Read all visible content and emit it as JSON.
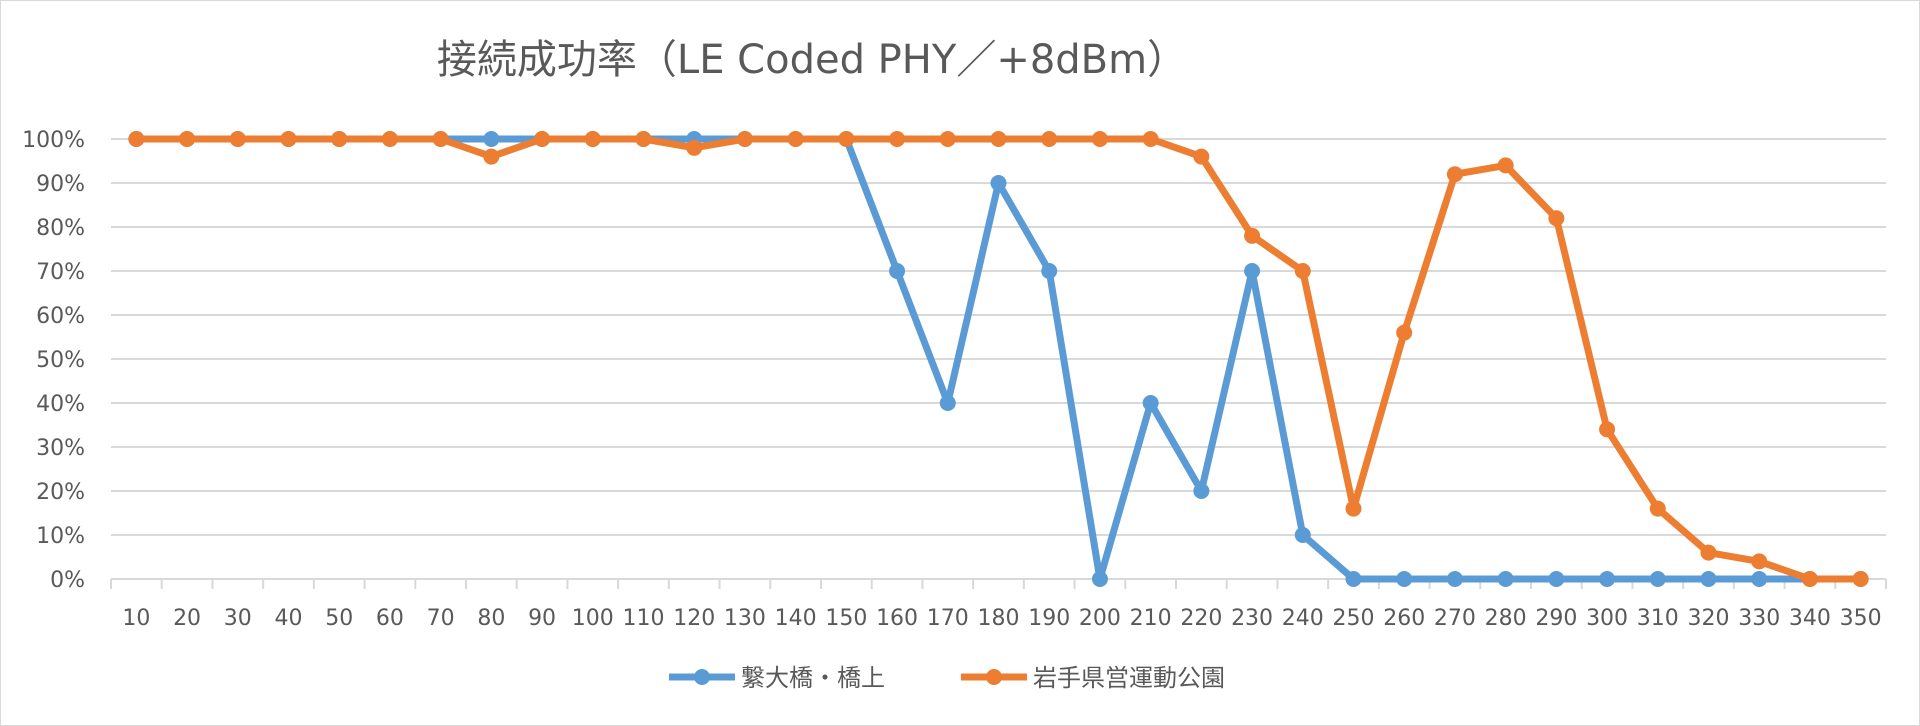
{
  "chart_data": {
    "type": "line",
    "title": "接続成功率（LE Coded PHY／+8dBm）",
    "xlabel": "",
    "ylabel": "",
    "x": [
      10,
      20,
      30,
      40,
      50,
      60,
      70,
      80,
      90,
      100,
      110,
      120,
      130,
      140,
      150,
      160,
      170,
      180,
      190,
      200,
      210,
      220,
      230,
      240,
      250,
      260,
      270,
      280,
      290,
      300,
      310,
      320,
      330,
      340,
      350
    ],
    "ylim": [
      0,
      100
    ],
    "y_ticks": [
      0,
      10,
      20,
      30,
      40,
      50,
      60,
      70,
      80,
      90,
      100
    ],
    "y_tick_suffix": "%",
    "grid": true,
    "legend_position": "bottom",
    "series": [
      {
        "name": "繋大橋・橋上",
        "color": "#5B9BD5",
        "values": [
          100,
          100,
          100,
          100,
          100,
          100,
          100,
          100,
          100,
          100,
          100,
          100,
          100,
          100,
          100,
          70,
          40,
          90,
          70,
          0,
          40,
          20,
          70,
          10,
          0,
          0,
          0,
          0,
          0,
          0,
          0,
          0,
          0,
          0,
          0
        ]
      },
      {
        "name": "岩手県営運動公園",
        "color": "#ED7D31",
        "values": [
          100,
          100,
          100,
          100,
          100,
          100,
          100,
          96,
          100,
          100,
          100,
          98,
          100,
          100,
          100,
          100,
          100,
          100,
          100,
          100,
          100,
          96,
          78,
          70,
          16,
          56,
          92,
          94,
          82,
          34,
          16,
          6,
          4,
          0,
          0
        ]
      }
    ]
  }
}
